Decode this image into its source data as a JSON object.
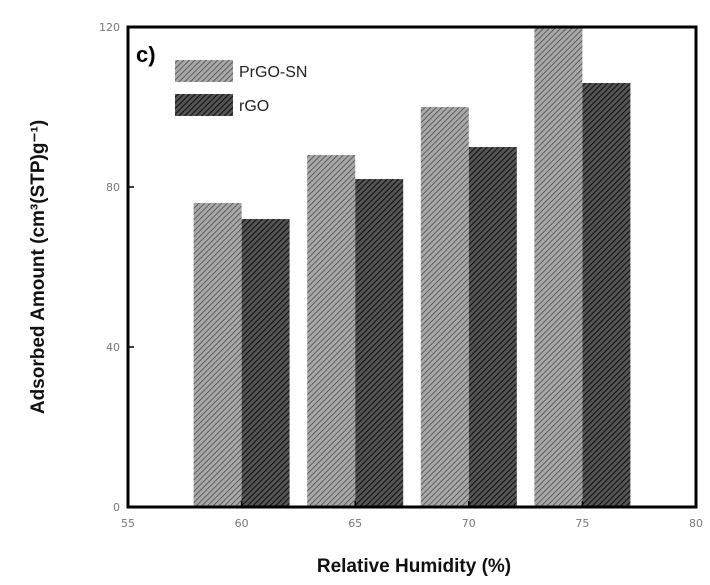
{
  "chart_data": {
    "type": "bar",
    "panel_label": "c)",
    "x": [
      60,
      65,
      70,
      75
    ],
    "x_ticks": [
      "55",
      "60",
      "65",
      "70",
      "75",
      "80"
    ],
    "xlim": [
      55,
      80
    ],
    "y_ticks": [
      "0",
      "40",
      "80",
      "120"
    ],
    "ylim": [
      0,
      120
    ],
    "xlabel": "Relative Humidity (%)",
    "ylabel": "Adsorbed Amount (cm³(STP)g⁻¹)",
    "legend_position": "top-left",
    "grid": false,
    "series": [
      {
        "name": "PrGO-SN",
        "values": [
          76,
          88,
          100,
          120
        ],
        "color": "#8a8a8a",
        "pattern": "diagonal-hatch-light"
      },
      {
        "name": "rGO",
        "values": [
          72,
          82,
          90,
          106
        ],
        "color": "#3c3c3c",
        "pattern": "diagonal-hatch-dark"
      }
    ]
  }
}
